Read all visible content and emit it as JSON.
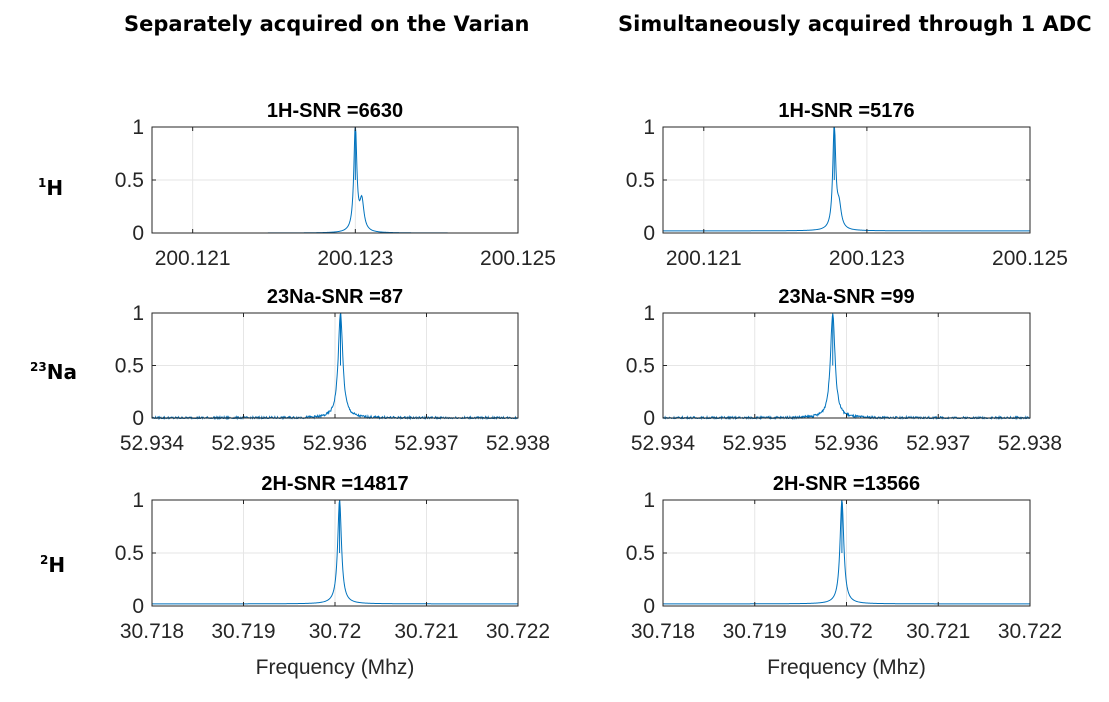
{
  "headers": {
    "left": "Separately acquired on the Varian",
    "right": "Simultaneously acquired through 1 ADC"
  },
  "row_labels": [
    {
      "sup": "1",
      "main": "H"
    },
    {
      "sup": "23",
      "main": "Na"
    },
    {
      "sup": "2",
      "main": "H"
    }
  ],
  "colors": {
    "line": "#0072BD",
    "grid": "#e6e6e6",
    "axis": "#262626"
  },
  "chart_data": [
    {
      "type": "line",
      "title": "1H-SNR =6630",
      "xlim": [
        200.1205,
        200.125
      ],
      "ylim": [
        0,
        1
      ],
      "xticks": [
        200.121,
        200.123,
        200.125
      ],
      "xticklabels": [
        "200.121",
        "200.123",
        "200.125"
      ],
      "yticks": [
        0,
        0.5,
        1
      ],
      "yticklabels": [
        "0",
        "0.5",
        "1"
      ],
      "xlabel": "",
      "peak": {
        "center": 200.123,
        "width": 2.2e-05,
        "shoulder": 200.12308,
        "shoulder_height": 0.28,
        "baseline": 0.0,
        "noise": 0.0
      }
    },
    {
      "type": "line",
      "title": "1H-SNR =5176",
      "xlim": [
        200.1205,
        200.125
      ],
      "ylim": [
        0,
        1
      ],
      "xticks": [
        200.121,
        200.123,
        200.125
      ],
      "xticklabels": [
        "200.121",
        "200.123",
        "200.125"
      ],
      "yticks": [
        0,
        0.5,
        1
      ],
      "yticklabels": [
        "0",
        "0.5",
        "1"
      ],
      "xlabel": "",
      "peak": {
        "center": 200.1226,
        "width": 2.2e-05,
        "shoulder": 200.12266,
        "shoulder_height": 0.2,
        "baseline": 0.02,
        "noise": 0.0
      }
    },
    {
      "type": "line",
      "title": "23Na-SNR =87",
      "xlim": [
        52.934,
        52.938
      ],
      "ylim": [
        0,
        1
      ],
      "xticks": [
        52.934,
        52.935,
        52.936,
        52.937,
        52.938
      ],
      "xticklabels": [
        "52.934",
        "52.935",
        "52.936",
        "52.937",
        "52.938"
      ],
      "yticks": [
        0,
        0.5,
        1
      ],
      "yticklabels": [
        "0",
        "0.5",
        "1"
      ],
      "xlabel": "",
      "peak": {
        "center": 52.93606,
        "width": 3e-05,
        "shoulder": 0,
        "shoulder_height": 0,
        "baseline": 0.0,
        "noise": 0.012
      }
    },
    {
      "type": "line",
      "title": "23Na-SNR =99",
      "xlim": [
        52.934,
        52.938
      ],
      "ylim": [
        0,
        1
      ],
      "xticks": [
        52.934,
        52.935,
        52.936,
        52.937,
        52.938
      ],
      "xticklabels": [
        "52.934",
        "52.935",
        "52.936",
        "52.937",
        "52.938"
      ],
      "yticks": [
        0,
        0.5,
        1
      ],
      "yticklabels": [
        "0",
        "0.5",
        "1"
      ],
      "xlabel": "",
      "peak": {
        "center": 52.93585,
        "width": 3e-05,
        "shoulder": 0,
        "shoulder_height": 0,
        "baseline": 0.0,
        "noise": 0.012
      }
    },
    {
      "type": "line",
      "title": "2H-SNR  =14817",
      "xlim": [
        30.718,
        30.722
      ],
      "ylim": [
        0,
        1
      ],
      "xticks": [
        30.718,
        30.719,
        30.72,
        30.721,
        30.722
      ],
      "xticklabels": [
        "30.718",
        "30.719",
        "30.72",
        "30.721",
        "30.722"
      ],
      "yticks": [
        0,
        0.5,
        1
      ],
      "yticklabels": [
        "0",
        "0.5",
        "1"
      ],
      "xlabel": "Frequency (Mhz)",
      "peak": {
        "center": 30.72005,
        "width": 2.5e-05,
        "shoulder": 0,
        "shoulder_height": 0,
        "baseline": 0.02,
        "noise": 0.0
      }
    },
    {
      "type": "line",
      "title": "2H-SNR =13566",
      "xlim": [
        30.718,
        30.722
      ],
      "ylim": [
        0,
        1
      ],
      "xticks": [
        30.718,
        30.719,
        30.72,
        30.721,
        30.722
      ],
      "xticklabels": [
        "30.718",
        "30.719",
        "30.72",
        "30.721",
        "30.722"
      ],
      "yticks": [
        0,
        0.5,
        1
      ],
      "yticklabels": [
        "0",
        "0.5",
        "1"
      ],
      "xlabel": "Frequency (Mhz)",
      "peak": {
        "center": 30.71995,
        "width": 2.5e-05,
        "shoulder": 0,
        "shoulder_height": 0,
        "baseline": 0.02,
        "noise": 0.0
      }
    }
  ]
}
